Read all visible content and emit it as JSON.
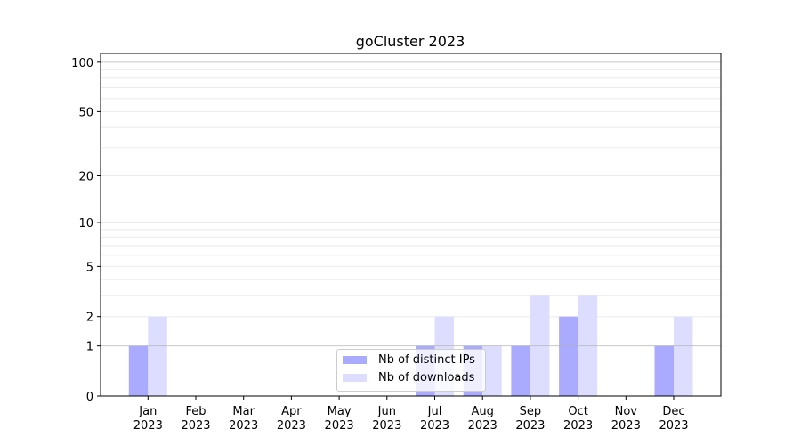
{
  "chart_data": {
    "type": "bar",
    "title": "goCluster 2023",
    "xlabel": "",
    "ylabel": "",
    "yscale": "log(1+y)",
    "ylim": [
      0,
      113
    ],
    "grid": "y major and minor",
    "legend_placement": "lower-center",
    "categories": [
      "Jan\n2023",
      "Feb\n2023",
      "Mar\n2023",
      "Apr\n2023",
      "May\n2023",
      "Jun\n2023",
      "Jul\n2023",
      "Aug\n2023",
      "Sep\n2023",
      "Oct\n2023",
      "Nov\n2023",
      "Dec\n2023"
    ],
    "month_labels": [
      "Jan",
      "Feb",
      "Mar",
      "Apr",
      "May",
      "Jun",
      "Jul",
      "Aug",
      "Sep",
      "Oct",
      "Nov",
      "Dec"
    ],
    "year_label": "2023",
    "yticks": [
      0,
      1,
      2,
      5,
      10,
      20,
      50,
      100
    ],
    "series": [
      {
        "name": "Nb of distinct IPs",
        "color": "#aaaaff",
        "values": [
          1,
          0,
          0,
          0,
          0,
          0,
          1,
          1,
          1,
          2,
          0,
          1
        ]
      },
      {
        "name": "Nb of downloads",
        "color": "#ddddff",
        "values": [
          2,
          0,
          0,
          0,
          0,
          0,
          2,
          1,
          3,
          3,
          0,
          2
        ]
      }
    ]
  }
}
